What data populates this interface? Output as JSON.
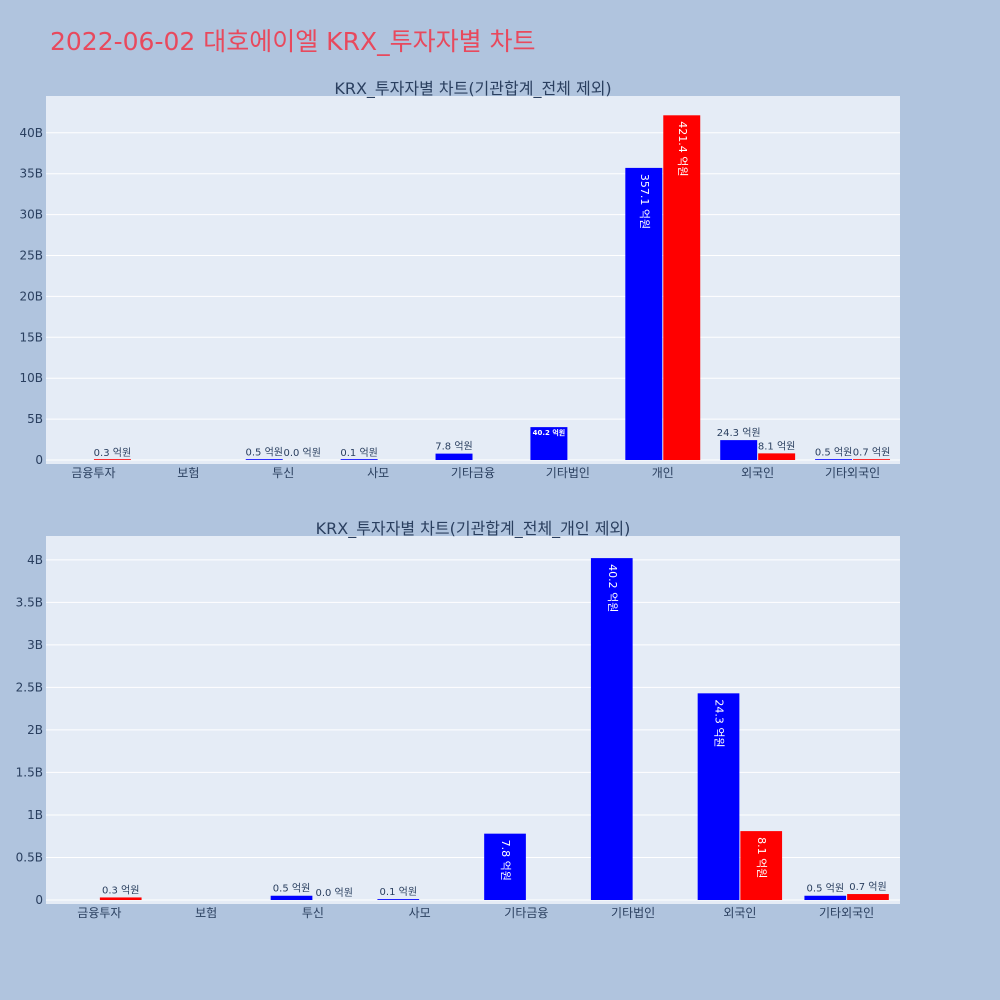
{
  "page_title": "2022-06-02 대호에이엘 KRX_투자자별 차트",
  "colors": {
    "background": "#b0c4de",
    "plot_bg": "#e5ecf6",
    "buy": "#0000ff",
    "sell": "#ff0000",
    "title": "#e8495d"
  },
  "chart_data": [
    {
      "type": "bar",
      "title": "KRX_투자자별 차트(기관합계_전체 제외)",
      "categories": [
        "금융투자",
        "보험",
        "투신",
        "사모",
        "기타금융",
        "기타법인",
        "개인",
        "외국인",
        "기타외국인"
      ],
      "series": [
        {
          "values": [
            0,
            0,
            0.05,
            0.01,
            0.78,
            4.02,
            35.71,
            2.43,
            0.05
          ],
          "labels": [
            "",
            "",
            "0.5 억원",
            "0.1 억원",
            "7.8 억원",
            "40.2 억원",
            "357.1 억원",
            "24.3 억원",
            "0.5 억원"
          ],
          "color": "#0000ff"
        },
        {
          "values": [
            0.03,
            0,
            0,
            0,
            0,
            0,
            42.14,
            0.81,
            0.07
          ],
          "labels": [
            "0.3 억원",
            "",
            "0.0 억원",
            "",
            "",
            "",
            "421.4 억원",
            "8.1 억원",
            "0.7 억원"
          ],
          "color": "#ff0000"
        }
      ],
      "ylim": [
        0,
        44.5
      ],
      "yticks": [
        0,
        5,
        10,
        15,
        20,
        25,
        30,
        35,
        40
      ],
      "ytick_labels": [
        "0",
        "5B",
        "10B",
        "15B",
        "20B",
        "25B",
        "30B",
        "35B",
        "40B"
      ],
      "grid": true
    },
    {
      "type": "bar",
      "title": "KRX_투자자별 차트(기관합계_전체_개인 제외)",
      "categories": [
        "금융투자",
        "보험",
        "투신",
        "사모",
        "기타금융",
        "기타법인",
        "외국인",
        "기타외국인"
      ],
      "series": [
        {
          "values": [
            0,
            0,
            0.05,
            0.01,
            0.78,
            4.02,
            2.43,
            0.05
          ],
          "labels": [
            "",
            "",
            "0.5 억원",
            "0.1 억원",
            "7.8 억원",
            "40.2 억원",
            "24.3 억원",
            "0.5 억원"
          ],
          "color": "#0000ff"
        },
        {
          "values": [
            0.03,
            0,
            0,
            0,
            0,
            0,
            0.81,
            0.07
          ],
          "labels": [
            "0.3 억원",
            "",
            "0.0 억원",
            "",
            "",
            "",
            "8.1 억원",
            "0.7 억원"
          ],
          "color": "#ff0000"
        }
      ],
      "ylim": [
        0,
        4.28
      ],
      "yticks": [
        0,
        0.5,
        1,
        1.5,
        2,
        2.5,
        3,
        3.5,
        4
      ],
      "ytick_labels": [
        "0",
        "0.5B",
        "1B",
        "1.5B",
        "2B",
        "2.5B",
        "3B",
        "3.5B",
        "4B"
      ],
      "grid": true
    }
  ]
}
